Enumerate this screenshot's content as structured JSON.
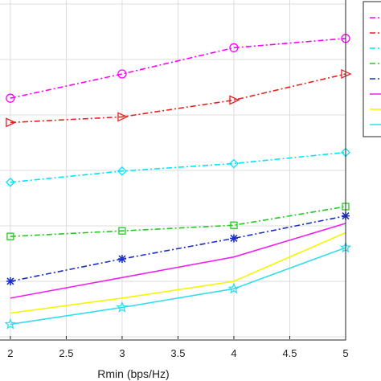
{
  "chart_data": {
    "type": "line",
    "title": "",
    "xlabel": "Rmin (bps/Hz)",
    "ylabel": "",
    "x": [
      2,
      3,
      4,
      5
    ],
    "xticks": [
      "2",
      "2.5",
      "3",
      "3.5",
      "4",
      "4.5",
      "5"
    ],
    "xlim": [
      1.9,
      5
    ],
    "grid": true,
    "legend_position": "top-right",
    "series": [
      {
        "color": "#ff00ff",
        "marker": "circle",
        "dash": "dash-dot",
        "values": [
          0.67,
          0.8,
          0.94,
          0.99
        ]
      },
      {
        "color": "#e82020",
        "marker": "triangle-right",
        "dash": "dash-dot",
        "values": [
          0.54,
          0.57,
          0.66,
          0.8
        ]
      },
      {
        "color": "#00e5ff",
        "marker": "diamond",
        "dash": "dash-dot",
        "values": [
          0.22,
          0.28,
          0.32,
          0.38
        ]
      },
      {
        "color": "#22cc22",
        "marker": "square",
        "dash": "dash-dot",
        "values": [
          -0.07,
          -0.04,
          -0.01,
          0.09
        ]
      },
      {
        "color": "#1a2ecc",
        "marker": "asterisk",
        "dash": "dash-dot",
        "values": [
          -0.31,
          -0.19,
          -0.08,
          0.04
        ]
      },
      {
        "color": "#ee22ee",
        "marker": "none",
        "dash": "solid",
        "values": [
          -0.4,
          -0.29,
          -0.18,
          0.0
        ]
      },
      {
        "color": "#f5f500",
        "marker": "none",
        "dash": "solid",
        "values": [
          -0.48,
          -0.4,
          -0.31,
          -0.05
        ]
      },
      {
        "color": "#33ddee",
        "marker": "star",
        "dash": "solid",
        "values": [
          -0.54,
          -0.45,
          -0.35,
          -0.13
        ]
      }
    ],
    "ylim": [
      -0.62,
      1.2
    ]
  }
}
